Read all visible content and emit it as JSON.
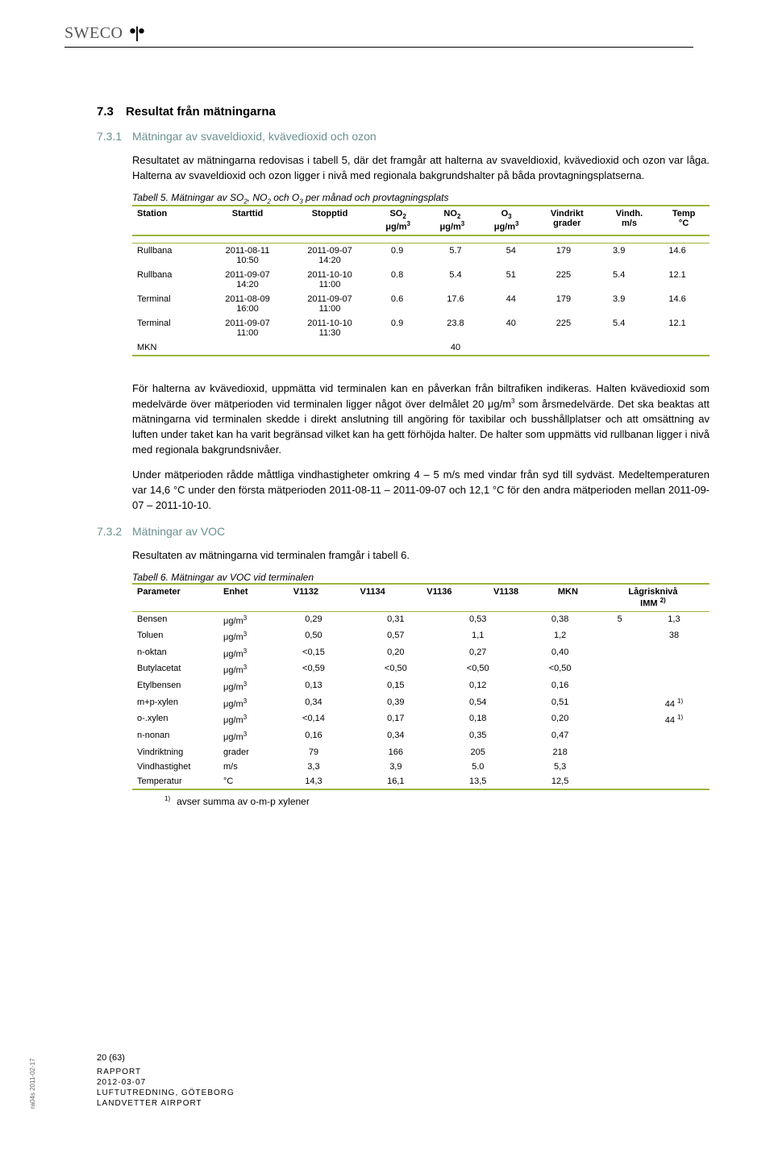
{
  "logo_text": "SWECO",
  "section_num_1": "7.3",
  "section_title_1": "Resultat från mätningarna",
  "section_num_2": "7.3.1",
  "section_title_2": "Mätningar av svaveldioxid, kvävedioxid och ozon",
  "para_1": "Resultatet av mätningarna redovisas i tabell 5, där det framgår att halterna av svaveldioxid, kvävedioxid och ozon var låga. Halterna av svaveldioxid och ozon ligger i nivå med regionala bakgrundshalter på båda provtagningsplatserna.",
  "table5": {
    "caption": "Tabell 5. Mätningar av SO2, NO2 och O3 per månad och provtagningsplats",
    "headers": [
      "Station",
      "Starttid",
      "Stopptid",
      "SO2 μg/m3",
      "NO2 μg/m3",
      "O3 μg/m3",
      "Vindrikt grader",
      "Vindh. m/s",
      "Temp °C"
    ],
    "rows": [
      {
        "station": "Rullbana",
        "start1": "2011-08-11",
        "start2": "10:50",
        "stop1": "2011-09-07",
        "stop2": "14:20",
        "so2": "0.9",
        "no2": "5.7",
        "o3": "54",
        "vd": "179",
        "vh": "3.9",
        "t": "14.6"
      },
      {
        "station": "Rullbana",
        "start1": "2011-09-07",
        "start2": "14:20",
        "stop1": "2011-10-10",
        "stop2": "11:00",
        "so2": "0.8",
        "no2": "5.4",
        "o3": "51",
        "vd": "225",
        "vh": "5.4",
        "t": "12.1"
      },
      {
        "station": "Terminal",
        "start1": "2011-08-09",
        "start2": "16:00",
        "stop1": "2011-09-07",
        "stop2": "11:00",
        "so2": "0.6",
        "no2": "17.6",
        "o3": "44",
        "vd": "179",
        "vh": "3.9",
        "t": "14.6"
      },
      {
        "station": "Terminal",
        "start1": "2011-09-07",
        "start2": "11:00",
        "stop1": "2011-10-10",
        "stop2": "11:30",
        "so2": "0.9",
        "no2": "23.8",
        "o3": "40",
        "vd": "225",
        "vh": "5.4",
        "t": "12.1"
      }
    ],
    "mkn_label": "MKN",
    "mkn_value": "40",
    "line_color": "#9bb53c"
  },
  "para_2": "För halterna av kvävedioxid, uppmätta vid terminalen kan en påverkan från biltrafiken indikeras. Halten kvävedioxid som medelvärde över mätperioden vid terminalen ligger något över delmålet 20 μg/m3 som årsmedelvärde. Det ska beaktas att mätningarna vid terminalen skedde i direkt anslutning till angöring för taxibilar och busshållplatser och att omsättning av luften under taket kan ha varit begränsad vilket kan ha gett förhöjda halter. De halter som uppmätts vid rullbanan ligger i nivå med regionala bakgrundsnivåer.",
  "para_3": "Under mätperioden rådde måttliga vindhastigheter omkring 4 – 5 m/s med vindar från syd till sydväst. Medeltemperaturen var 14,6 °C under den första mätperioden 2011-08-11 – 2011-09-07 och 12,1 °C för den andra mätperioden mellan 2011-09-07 – 2011-10-10.",
  "section_num_3": "7.3.2",
  "section_title_3": "Mätningar av VOC",
  "para_4": "Resultaten av mätningarna vid terminalen framgår i tabell 6.",
  "table6": {
    "caption": "Tabell 6. Mätningar av VOC vid terminalen",
    "headers": [
      "Parameter",
      "Enhet",
      "V1132",
      "V1134",
      "V1136",
      "V1138",
      "MKN",
      "Lågrisknivå IMM 2)"
    ],
    "rows": [
      {
        "p": "Bensen",
        "e": "μg/m3",
        "v": [
          "0,29",
          "0,31",
          "0,53",
          "0,38",
          "5",
          "1,3"
        ]
      },
      {
        "p": "Toluen",
        "e": "μg/m3",
        "v": [
          "0,50",
          "0,57",
          "1,1",
          "1,2",
          "",
          "38"
        ]
      },
      {
        "p": "n-oktan",
        "e": "μg/m3",
        "v": [
          "<0,15",
          "0,20",
          "0,27",
          "0,40",
          "",
          ""
        ]
      },
      {
        "p": "Butylacetat",
        "e": "μg/m3",
        "v": [
          "<0,59",
          "<0,50",
          "<0,50",
          "<0,50",
          "",
          ""
        ]
      },
      {
        "p": "Etylbensen",
        "e": "μg/m3",
        "v": [
          "0,13",
          "0,15",
          "0,12",
          "0,16",
          "",
          ""
        ]
      },
      {
        "p": "m+p-xylen",
        "e": "μg/m3",
        "v": [
          "0,34",
          "0,39",
          "0,54",
          "0,51",
          "",
          "44 1)"
        ]
      },
      {
        "p": "o-.xylen",
        "e": "μg/m3",
        "v": [
          "<0,14",
          "0,17",
          "0,18",
          "0,20",
          "",
          "44 1)"
        ]
      },
      {
        "p": "n-nonan",
        "e": "μg/m3",
        "v": [
          "0,16",
          "0,34",
          "0,35",
          "0,47",
          "",
          ""
        ]
      },
      {
        "p": "Vindriktning",
        "e": "grader",
        "v": [
          "79",
          "166",
          "205",
          "218",
          "",
          ""
        ]
      },
      {
        "p": "Vindhastighet",
        "e": "m/s",
        "v": [
          "3,3",
          "3,9",
          "5.0",
          "5,3",
          "",
          ""
        ]
      },
      {
        "p": "Temperatur",
        "e": "°C",
        "v": [
          "14,3",
          "16,1",
          "13,5",
          "12,5",
          "",
          ""
        ]
      }
    ]
  },
  "footnote_mark": "1)",
  "footnote_text": "avser summa av o-m-p xylener",
  "footer": {
    "pagenum": "20 (63)",
    "l1": "RAPPORT",
    "l2": "2012-03-07",
    "l3": "LUFTUTREDNING, GÖTEBORG",
    "l4": "LANDVETTER AIRPORT"
  },
  "side_label": "ra04s 2011-02-17"
}
